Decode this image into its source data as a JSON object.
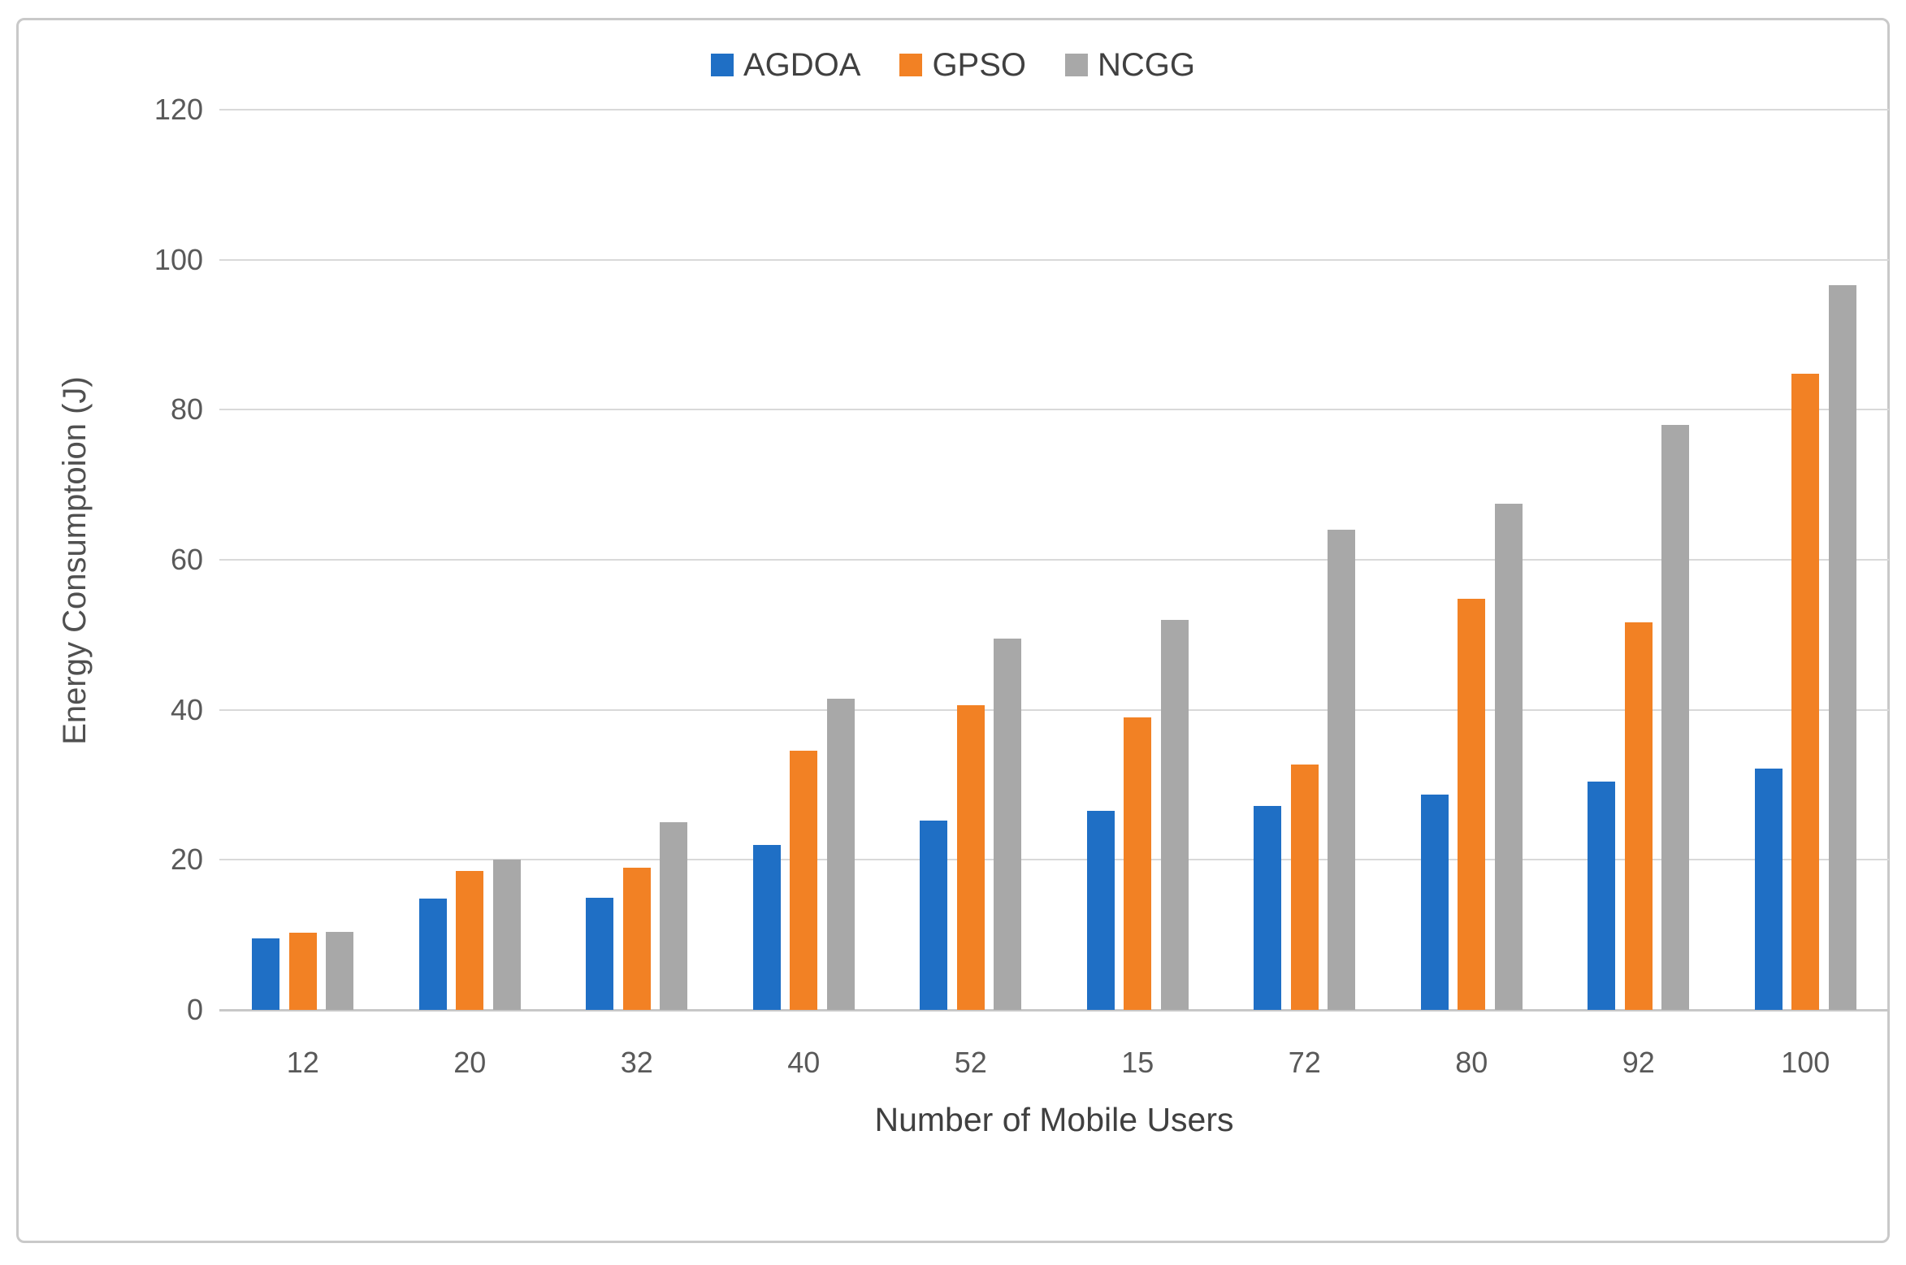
{
  "figure": {
    "background": "#ffffff",
    "border_color": "#c9c9c9"
  },
  "chart_data": {
    "type": "bar",
    "title": "",
    "xlabel": "Number of Mobile Users",
    "ylabel": "Energy Consumptoion (J)",
    "categories": [
      "12",
      "20",
      "32",
      "40",
      "52",
      "15",
      "72",
      "80",
      "92",
      "100"
    ],
    "series": [
      {
        "name": "AGDOA",
        "color": "#1F6FC5",
        "values": [
          9.5,
          14.8,
          15,
          22,
          25.2,
          26.5,
          27.2,
          28.7,
          30.4,
          32.2
        ]
      },
      {
        "name": "GPSO",
        "color": "#F28124",
        "values": [
          10.3,
          18.5,
          19,
          34.5,
          40.6,
          39,
          32.7,
          54.8,
          51.7,
          84.8
        ]
      },
      {
        "name": "NCGG",
        "color": "#A8A8A8",
        "values": [
          10.4,
          20,
          25,
          41.5,
          49.5,
          52,
          64,
          67.5,
          78,
          96.6
        ]
      }
    ],
    "ylim": [
      0,
      120
    ],
    "yticks": [
      0,
      20,
      40,
      60,
      80,
      100,
      120
    ],
    "grid": true,
    "gridline_color": "#d9d9d9",
    "axis_line_color": "#c8c8c8",
    "tick_label_color": "#595959",
    "axis_title_color": "#404040",
    "legend_position": "top-center"
  }
}
